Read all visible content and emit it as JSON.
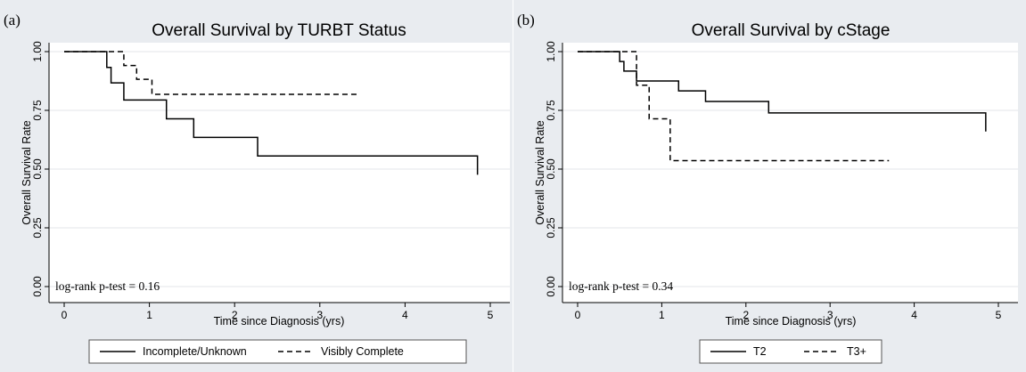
{
  "chart_data": [
    {
      "type": "line",
      "panel_label": "(a)",
      "title": "Overall Survival by TURBT Status",
      "xlabel": "Time since Diagnosis (yrs)",
      "ylabel": "Overall Survival Rate",
      "xlim": [
        0,
        5
      ],
      "ylim": [
        0,
        1
      ],
      "xticks": [
        0,
        1,
        2,
        3,
        4,
        5
      ],
      "yticks": [
        "0.00",
        "0.25",
        "0.50",
        "0.75",
        "1.00"
      ],
      "grid": true,
      "annotation": "log-rank p-test = 0.16",
      "legend_position": "bottom",
      "series": [
        {
          "name": "Incomplete/Unknown",
          "style": "solid",
          "step_x": [
            0,
            0.5,
            0.55,
            0.7,
            1.08,
            1.2,
            1.52,
            2.27,
            4.85
          ],
          "step_y": [
            1.0,
            0.933,
            0.867,
            0.794,
            0.794,
            0.714,
            0.635,
            0.556,
            0.476
          ]
        },
        {
          "name": "Visibly Complete",
          "style": "dashed",
          "step_x": [
            0,
            0.7,
            0.85,
            0.98,
            1.03,
            3.45
          ],
          "step_y": [
            1.0,
            0.941,
            0.882,
            0.882,
            0.818,
            0.818
          ]
        }
      ]
    },
    {
      "type": "line",
      "panel_label": "(b)",
      "title": "Overall Survival by cStage",
      "xlabel": "Time since Diagnosis (yrs)",
      "ylabel": "Overall Survival Rate",
      "xlim": [
        0,
        5
      ],
      "ylim": [
        0,
        1
      ],
      "xticks": [
        0,
        1,
        2,
        3,
        4,
        5
      ],
      "yticks": [
        "0.00",
        "0.25",
        "0.50",
        "0.75",
        "1.00"
      ],
      "grid": true,
      "annotation": "log-rank p-test = 0.34",
      "legend_position": "bottom",
      "series": [
        {
          "name": "T2",
          "style": "solid",
          "step_x": [
            0,
            0.5,
            0.55,
            0.7,
            1.0,
            1.2,
            1.52,
            2.27,
            4.85
          ],
          "step_y": [
            1.0,
            0.958,
            0.917,
            0.875,
            0.875,
            0.833,
            0.788,
            0.739,
            0.66
          ]
        },
        {
          "name": "T3+",
          "style": "dashed",
          "step_x": [
            0,
            0.7,
            0.85,
            1.0,
            1.1,
            3.7
          ],
          "step_y": [
            1.0,
            0.857,
            0.714,
            0.714,
            0.536,
            0.536
          ]
        }
      ]
    }
  ]
}
